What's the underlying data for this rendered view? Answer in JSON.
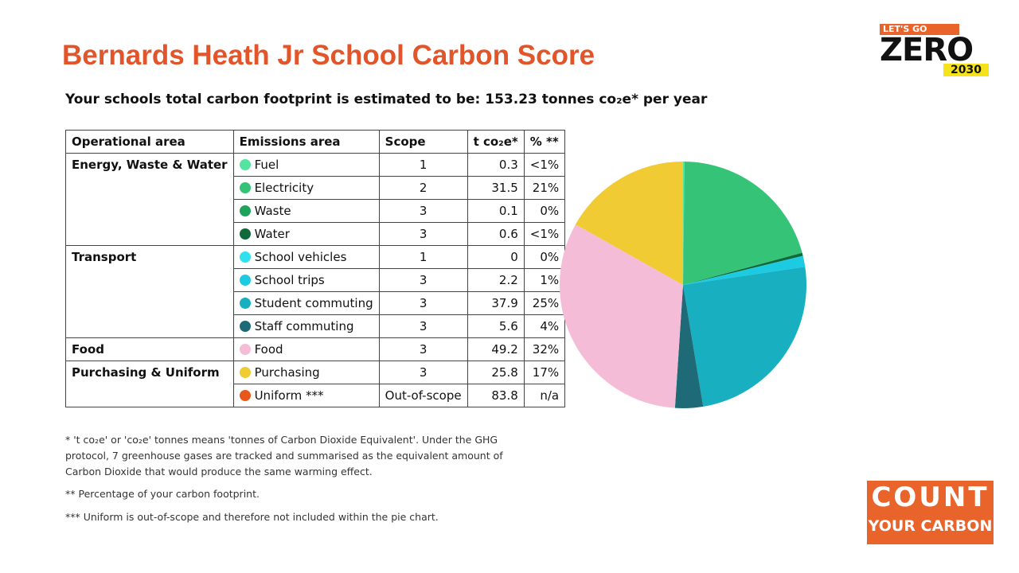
{
  "header": {
    "title": "Bernards Heath Jr School Carbon Score",
    "subtitle": "Your schools total carbon footprint is estimated to be: 153.23 tonnes co₂e* per year"
  },
  "table": {
    "columns": [
      "Operational area",
      "Emissions area",
      "Scope",
      "t co₂e*",
      "% **"
    ],
    "groups": [
      {
        "area": "Energy, Waste & Water",
        "rows": [
          {
            "name": "Fuel",
            "color": "#55e3a0",
            "scope": 1,
            "t": 0.3,
            "pct": "<1%"
          },
          {
            "name": "Electricity",
            "color": "#35c477",
            "scope": 2,
            "t": 31.5,
            "pct": "21%"
          },
          {
            "name": "Waste",
            "color": "#1fa35a",
            "scope": 3,
            "t": 0.1,
            "pct": "0%"
          },
          {
            "name": "Water",
            "color": "#0e6a38",
            "scope": 3,
            "t": 0.6,
            "pct": "<1%"
          }
        ]
      },
      {
        "area": "Transport",
        "rows": [
          {
            "name": "School vehicles",
            "color": "#2ee0f0",
            "scope": 1,
            "t": 0,
            "pct": "0%"
          },
          {
            "name": "School trips",
            "color": "#1ccbe2",
            "scope": 3,
            "t": 2.2,
            "pct": "1%"
          },
          {
            "name": "Student commuting",
            "color": "#18afc0",
            "scope": 3,
            "t": 37.9,
            "pct": "25%"
          },
          {
            "name": "Staff commuting",
            "color": "#1f6a77",
            "scope": 3,
            "t": 5.6,
            "pct": "4%"
          }
        ]
      },
      {
        "area": "Food",
        "rows": [
          {
            "name": "Food",
            "color": "#f4bcd6",
            "scope": 3,
            "t": 49.2,
            "pct": "32%"
          }
        ]
      },
      {
        "area": "Purchasing & Uniform",
        "rows": [
          {
            "name": "Purchasing",
            "color": "#f0cb33",
            "scope": 3,
            "t": 25.8,
            "pct": "17%"
          },
          {
            "name": "Uniform ***",
            "color": "#e8581c",
            "scope": "Out-of-scope",
            "t": 83.8,
            "pct": "n/a"
          }
        ]
      }
    ]
  },
  "notes": [
    "* 't co₂e' or 'co₂e' tonnes means 'tonnes of Carbon Dioxide Equivalent'. Under the GHG protocol, 7 greenhouse gases are tracked and summarised as the equivalent amount of Carbon Dioxide that would produce the same warming effect.",
    "** Percentage of your carbon footprint.",
    "*** Uniform is out-of-scope and therefore not included within the pie chart."
  ],
  "logos": {
    "zero": {
      "top": "LET'S GO",
      "main": "ZERO",
      "year": "2030"
    },
    "count": {
      "line1": "COUNT",
      "line2": "YOUR CARBON"
    }
  }
}
